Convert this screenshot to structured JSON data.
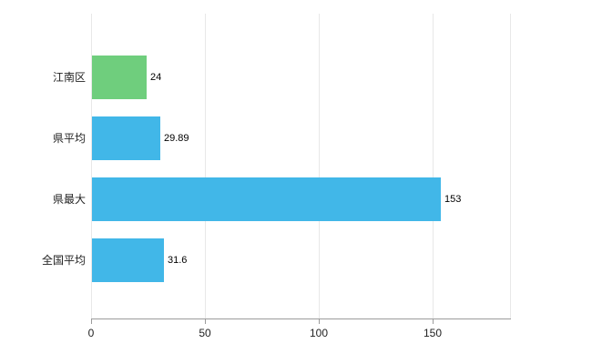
{
  "chart_data": {
    "type": "bar",
    "orientation": "horizontal",
    "title": "",
    "xlabel": "",
    "ylabel": "",
    "categories": [
      "江南区",
      "県平均",
      "県最大",
      "全国平均"
    ],
    "values": [
      24,
      29.89,
      153,
      31.6
    ],
    "value_labels": [
      "24",
      "29.89",
      "153",
      "31.6"
    ],
    "bar_colors": [
      "#6fce7d",
      "#41b7e8",
      "#41b7e8",
      "#41b7e8"
    ],
    "x_ticks": [
      0,
      50,
      100,
      150
    ],
    "x_tick_labels": [
      "0",
      "50",
      "100",
      "150"
    ],
    "x_max": 184,
    "grid": "on",
    "legend": "none"
  },
  "colors": {
    "background": "#ffffff",
    "grid": "#e8e8e8",
    "axis": "#9b9b9b",
    "text": "#222222",
    "value_text": "#000000",
    "green_bar": "#6fce7d",
    "blue_bar": "#41b7e8"
  }
}
